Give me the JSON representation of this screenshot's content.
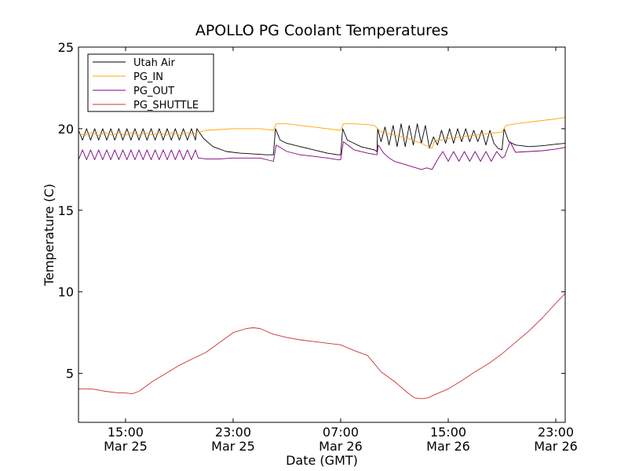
{
  "chart_data": {
    "type": "line",
    "title": "APOLLO PG Coolant Temperatures",
    "xlabel": "Date (GMT)",
    "ylabel": "Temperature (C)",
    "ylim": [
      2,
      25
    ],
    "xlim": [
      11.5,
      47.7
    ],
    "x_unit": "hours since 00:00 Mar 25 (GMT)",
    "yticks": [
      5,
      10,
      15,
      20,
      25
    ],
    "xticks": [
      {
        "value": 15,
        "time": "15:00",
        "date": "Mar 25"
      },
      {
        "value": 23,
        "time": "23:00",
        "date": "Mar 25"
      },
      {
        "value": 31,
        "time": "07:00",
        "date": "Mar 26"
      },
      {
        "value": 39,
        "time": "15:00",
        "date": "Mar 26"
      },
      {
        "value": 47,
        "time": "23:00",
        "date": "Mar 26"
      }
    ],
    "legend_position": "top-left",
    "series": [
      {
        "name": "Utah Air",
        "color": "#000000",
        "x": [
          11.5,
          11.8,
          12.1,
          12.4,
          12.7,
          13.0,
          13.3,
          13.6,
          13.9,
          14.2,
          14.5,
          14.8,
          15.1,
          15.4,
          15.7,
          16.0,
          16.3,
          16.6,
          16.9,
          17.2,
          17.5,
          17.8,
          18.1,
          18.4,
          18.7,
          19.0,
          19.3,
          19.6,
          19.9,
          20.2,
          20.3,
          20.8,
          21.5,
          22.5,
          23.5,
          24.5,
          25.5,
          26.0,
          26.15,
          26.5,
          27.0,
          28.0,
          29.0,
          30.0,
          30.8,
          31.0,
          31.15,
          31.5,
          32.0,
          32.5,
          33.0,
          33.5,
          33.7,
          33.75,
          34.0,
          34.3,
          34.6,
          34.9,
          35.2,
          35.5,
          35.8,
          36.1,
          36.4,
          36.7,
          37.0,
          37.3,
          37.6,
          37.9,
          38.2,
          38.5,
          38.8,
          39.1,
          39.4,
          39.7,
          40.0,
          40.3,
          40.6,
          40.9,
          41.2,
          41.5,
          41.8,
          42.1,
          42.4,
          42.7,
          43.0,
          43.15,
          43.5,
          44.0,
          45.0,
          46.0,
          47.0,
          47.7
        ],
        "values": [
          19.9,
          19.3,
          20.0,
          19.3,
          20.0,
          19.3,
          20.0,
          19.3,
          20.0,
          19.3,
          20.0,
          19.3,
          20.0,
          19.3,
          20.0,
          19.3,
          20.0,
          19.3,
          20.0,
          19.3,
          20.0,
          19.3,
          20.0,
          19.3,
          20.0,
          19.3,
          20.0,
          19.3,
          20.0,
          19.3,
          20.0,
          19.4,
          18.9,
          18.6,
          18.5,
          18.45,
          18.4,
          18.4,
          20.0,
          19.3,
          19.1,
          18.9,
          18.7,
          18.5,
          18.4,
          18.4,
          20.0,
          19.3,
          19.1,
          18.9,
          18.8,
          18.7,
          18.6,
          20.0,
          19.2,
          20.1,
          19.0,
          20.2,
          18.9,
          20.3,
          18.9,
          20.2,
          19.0,
          20.3,
          19.1,
          20.2,
          18.8,
          19.5,
          19.0,
          19.9,
          19.1,
          20.0,
          19.1,
          20.0,
          19.2,
          20.0,
          19.2,
          19.9,
          19.2,
          19.9,
          19.0,
          19.9,
          19.1,
          18.8,
          18.7,
          20.0,
          19.2,
          19.0,
          18.9,
          18.95,
          19.05,
          19.1
        ]
      },
      {
        "name": "PG_IN",
        "color": "#ffa500",
        "x": [
          11.5,
          12.0,
          12.5,
          13.0,
          13.5,
          14.0,
          14.5,
          15.0,
          15.5,
          16.0,
          16.5,
          17.0,
          17.5,
          18.0,
          18.5,
          19.0,
          19.5,
          20.0,
          20.5,
          21.0,
          22.0,
          23.0,
          24.0,
          25.0,
          26.0,
          26.2,
          27.0,
          28.0,
          29.0,
          30.0,
          31.0,
          31.2,
          32.0,
          33.0,
          33.5,
          34.0,
          35.0,
          36.0,
          37.0,
          37.8,
          38.0,
          38.5,
          39.0,
          40.0,
          41.0,
          42.0,
          43.0,
          43.3,
          44.0,
          45.0,
          46.0,
          47.0,
          47.7
        ],
        "values": [
          19.7,
          19.6,
          19.75,
          19.6,
          19.75,
          19.6,
          19.75,
          19.6,
          19.75,
          19.6,
          19.75,
          19.6,
          19.75,
          19.6,
          19.75,
          19.6,
          19.75,
          19.65,
          19.8,
          19.9,
          19.95,
          20.0,
          20.0,
          20.0,
          19.9,
          20.3,
          20.3,
          20.2,
          20.1,
          20.0,
          19.9,
          20.3,
          20.3,
          20.25,
          20.2,
          19.8,
          19.6,
          19.4,
          19.1,
          18.8,
          19.3,
          19.3,
          19.4,
          19.5,
          19.6,
          19.7,
          19.8,
          20.2,
          20.3,
          20.4,
          20.5,
          20.6,
          20.7
        ]
      },
      {
        "name": "PG_OUT",
        "color": "#800080",
        "x": [
          11.5,
          11.8,
          12.1,
          12.4,
          12.7,
          13.0,
          13.3,
          13.6,
          13.9,
          14.2,
          14.5,
          14.8,
          15.1,
          15.4,
          15.7,
          16.0,
          16.3,
          16.6,
          16.9,
          17.2,
          17.5,
          17.8,
          18.1,
          18.4,
          18.7,
          19.0,
          19.3,
          19.6,
          19.9,
          20.2,
          20.4,
          21.0,
          22.0,
          23.0,
          24.0,
          25.0,
          26.0,
          26.2,
          27.0,
          28.0,
          29.0,
          30.0,
          30.8,
          31.0,
          31.2,
          32.0,
          33.0,
          33.7,
          33.8,
          34.2,
          34.6,
          35.0,
          35.4,
          35.8,
          36.2,
          36.6,
          37.0,
          37.4,
          37.8,
          38.2,
          38.6,
          39.0,
          39.4,
          39.8,
          40.2,
          40.6,
          41.0,
          41.4,
          41.8,
          42.2,
          42.6,
          43.0,
          43.2,
          43.6,
          44.0,
          45.0,
          46.0,
          47.0,
          47.7
        ],
        "values": [
          18.1,
          18.7,
          18.1,
          18.7,
          18.1,
          18.7,
          18.1,
          18.7,
          18.1,
          18.7,
          18.1,
          18.7,
          18.1,
          18.7,
          18.1,
          18.7,
          18.1,
          18.7,
          18.1,
          18.7,
          18.1,
          18.7,
          18.1,
          18.7,
          18.1,
          18.7,
          18.1,
          18.7,
          18.1,
          18.7,
          18.2,
          18.15,
          18.15,
          18.2,
          18.2,
          18.2,
          18.0,
          19.0,
          18.6,
          18.4,
          18.3,
          18.2,
          18.1,
          18.1,
          19.2,
          18.7,
          18.5,
          18.4,
          19.0,
          18.5,
          18.2,
          18.0,
          17.9,
          17.8,
          17.7,
          17.6,
          17.5,
          17.6,
          17.5,
          18.1,
          18.6,
          18.0,
          18.6,
          18.0,
          18.6,
          18.0,
          18.6,
          18.0,
          18.6,
          18.0,
          18.6,
          18.2,
          18.3,
          19.2,
          18.55,
          18.6,
          18.65,
          18.75,
          18.85
        ]
      },
      {
        "name": "PG_SHUTTLE",
        "color": "#cc3333",
        "x": [
          11.5,
          12.5,
          13.5,
          14.5,
          15.0,
          15.5,
          16.0,
          17.0,
          18.0,
          19.0,
          20.0,
          21.0,
          22.0,
          23.0,
          24.0,
          24.5,
          25.0,
          26.0,
          27.0,
          28.0,
          29.0,
          30.0,
          31.0,
          32.0,
          33.0,
          34.0,
          35.0,
          36.0,
          36.5,
          37.0,
          37.5,
          38.0,
          39.0,
          40.0,
          41.0,
          42.0,
          43.0,
          44.0,
          45.0,
          46.0,
          47.0,
          47.7
        ],
        "values": [
          4.05,
          4.05,
          3.9,
          3.8,
          3.8,
          3.75,
          3.9,
          4.5,
          5.0,
          5.5,
          5.9,
          6.3,
          6.9,
          7.5,
          7.75,
          7.8,
          7.75,
          7.4,
          7.2,
          7.05,
          6.95,
          6.85,
          6.75,
          6.4,
          6.1,
          5.1,
          4.5,
          3.8,
          3.5,
          3.45,
          3.5,
          3.7,
          4.05,
          4.55,
          5.1,
          5.6,
          6.2,
          6.9,
          7.6,
          8.4,
          9.3,
          9.9
        ]
      }
    ]
  }
}
